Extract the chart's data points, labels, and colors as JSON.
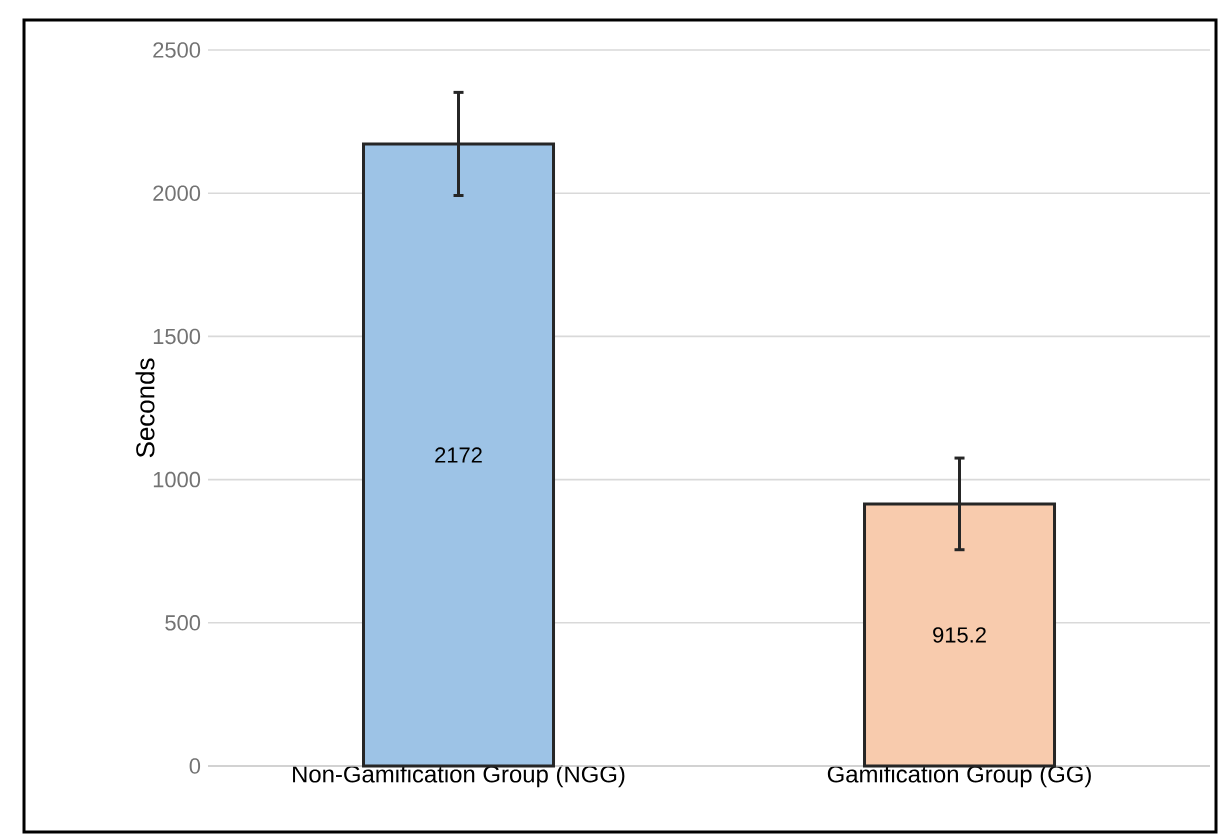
{
  "chart_data": {
    "type": "bar",
    "ylabel": "Seconds",
    "categories": [
      "Non-Gamification Group (NGG)",
      "Gamification Group (GG)"
    ],
    "values": [
      2172,
      915.2
    ],
    "errors": [
      180,
      160
    ],
    "colors": [
      "#9dc3e6",
      "#f8cbad"
    ],
    "ylim": [
      0,
      2500
    ],
    "yticks": [
      0,
      500,
      1000,
      1500,
      2000,
      2500
    ],
    "grid": "y",
    "data_labels": true
  }
}
